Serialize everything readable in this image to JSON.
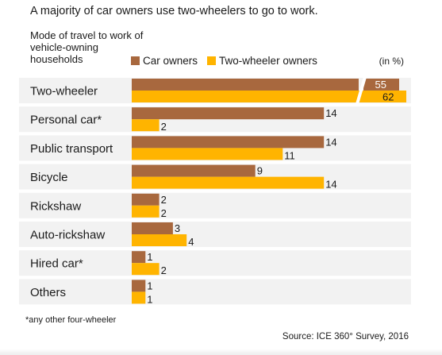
{
  "title": "A majority of car owners use two-wheelers to go to work.",
  "chart_data": {
    "type": "bar",
    "orientation": "horizontal",
    "title": "A majority of car owners use two-wheelers to go to work.",
    "subtitle": "Mode of travel to work of vehicle-owning households",
    "unit": "(in %)",
    "categories": [
      "Two-wheeler",
      "Personal car*",
      "Public transport",
      "Bicycle",
      "Rickshaw",
      "Auto-rickshaw",
      "Hired car*",
      "Others"
    ],
    "series": [
      {
        "name": "Car owners",
        "color": "#a8683e",
        "values": [
          55,
          14,
          14,
          9,
          2,
          3,
          1,
          1
        ]
      },
      {
        "name": "Two-wheeler owners",
        "color": "#ffb400",
        "values": [
          62,
          2,
          11,
          14,
          2,
          4,
          2,
          1
        ]
      }
    ],
    "axis_break": true,
    "value_labels": true,
    "grid": false,
    "legend_position": "top"
  },
  "footnote": "*any other four-wheeler",
  "source": "Source: ICE 360° Survey, 2016",
  "colors": {
    "car": "#a8683e",
    "two_wheeler": "#ffb400",
    "row_band": "#f2f2f2"
  }
}
